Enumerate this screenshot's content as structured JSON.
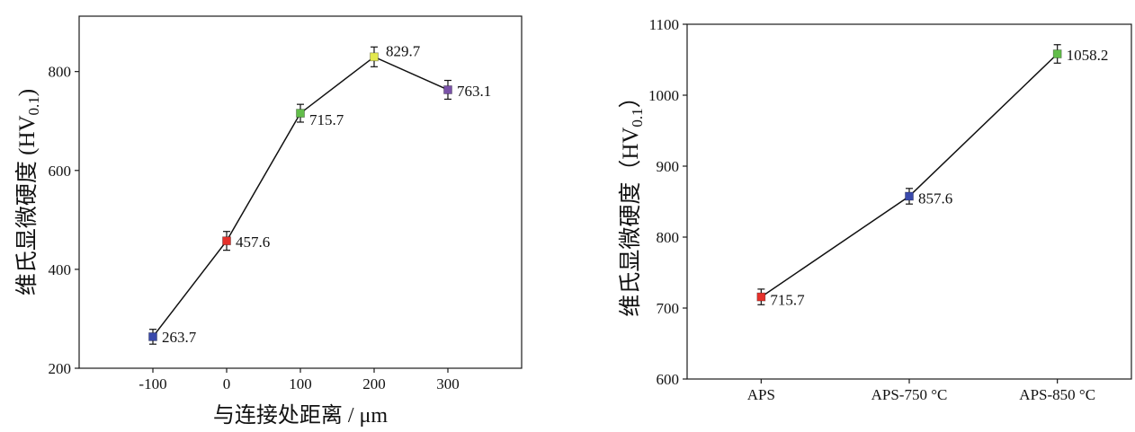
{
  "chart_data": [
    {
      "type": "line",
      "x": [
        -100,
        0,
        100,
        200,
        300
      ],
      "xticks": [
        -100,
        0,
        100,
        200,
        300
      ],
      "yticks": [
        200,
        400,
        600,
        800
      ],
      "xlim": [
        -200,
        400
      ],
      "ylim": [
        200,
        912
      ],
      "xlabel": "与连接处距离 / μm",
      "ylabel": {
        "text": "维氏显微硬度 (HV",
        "subscript": "0.1",
        "close": ")"
      },
      "grid": false,
      "series": [
        {
          "values": [
            263.7,
            457.6,
            715.7,
            829.7,
            763.1
          ],
          "errors": [
            15,
            19,
            18,
            20,
            19
          ],
          "point_colors": [
            "#3949ab",
            "#e5312b",
            "#62bd4a",
            "#e3e84e",
            "#7a52a8"
          ],
          "line_color": "#111111"
        }
      ]
    },
    {
      "type": "line",
      "categories": [
        "APS",
        "APS-750 °C",
        "APS-850 °C"
      ],
      "yticks": [
        600,
        700,
        800,
        900,
        1000,
        1100
      ],
      "ylim": [
        600,
        1100
      ],
      "ylabel": {
        "text": "维氏显微硬度（HV",
        "subscript": "0.1",
        "close": "）"
      },
      "grid": false,
      "series": [
        {
          "values": [
            715.7,
            857.6,
            1058.2
          ],
          "errors": [
            11,
            11,
            13
          ],
          "point_colors": [
            "#e5312b",
            "#3949ab",
            "#62bd4a"
          ],
          "line_color": "#111111"
        }
      ]
    }
  ]
}
